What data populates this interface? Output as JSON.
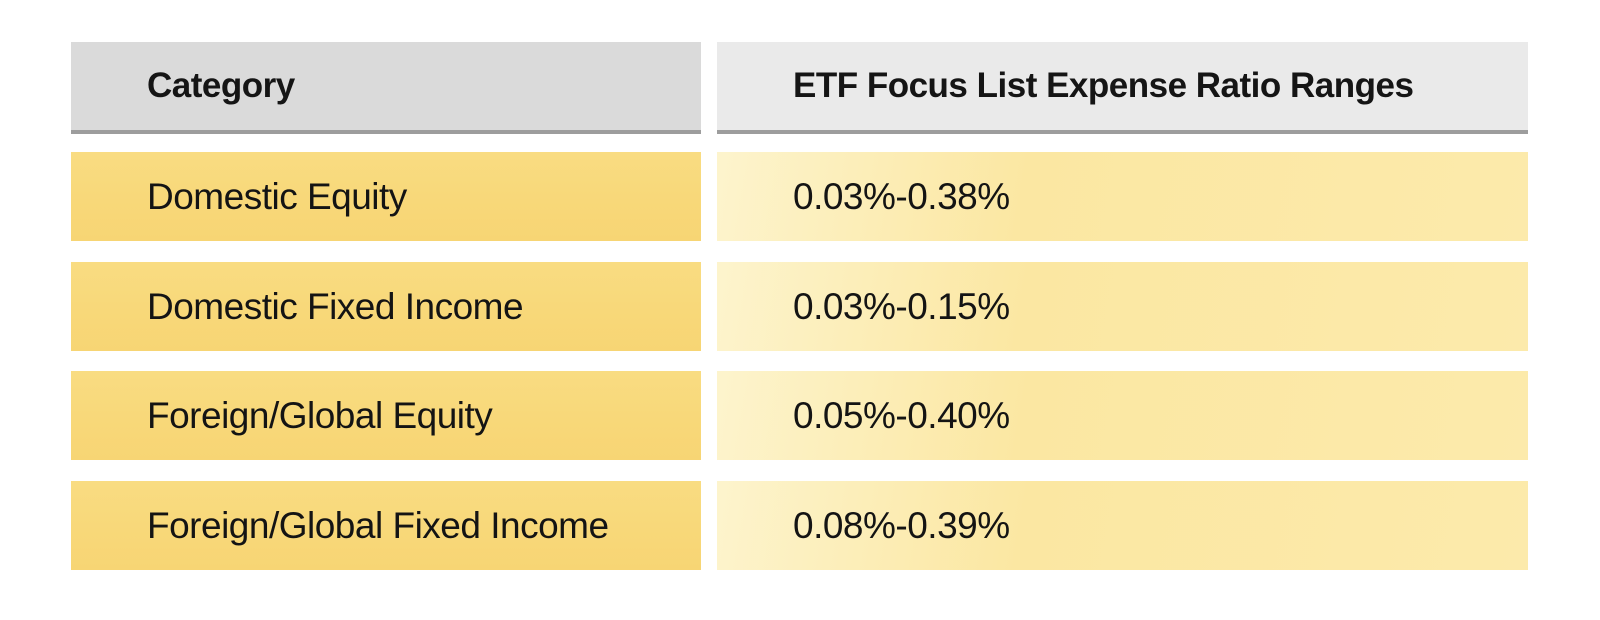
{
  "table": {
    "header": {
      "category_label": "Category",
      "expense_label": "ETF Focus List Expense Ratio Ranges"
    },
    "rows": [
      {
        "category": "Domestic Equity",
        "range": "0.03%-0.38%"
      },
      {
        "category": "Domestic Fixed Income",
        "range": "0.03%-0.15%"
      },
      {
        "category": "Foreign/Global Equity",
        "range": "0.05%-0.40%"
      },
      {
        "category": "Foreign/Global Fixed Income",
        "range": "0.08%-0.39%"
      }
    ]
  },
  "colors": {
    "header_col1_bg": "#dadada",
    "header_col2_bg": "#eaeaea",
    "header_border": "#9d9d9d",
    "row_col1_bg": "#f8d879",
    "row_col2_bg_light": "#fdf4cd",
    "row_col2_bg_deep": "#fbe7a2",
    "text": "#141414",
    "page_bg": "#ffffff"
  },
  "chart_data": {
    "type": "table",
    "title": "ETF Focus List Expense Ratio Ranges",
    "columns": [
      "Category",
      "ETF Focus List Expense Ratio Ranges"
    ],
    "rows": [
      [
        "Domestic Equity",
        "0.03%-0.38%"
      ],
      [
        "Domestic Fixed Income",
        "0.03%-0.15%"
      ],
      [
        "Foreign/Global Equity",
        "0.05%-0.40%"
      ],
      [
        "Foreign/Global Fixed Income",
        "0.08%-0.39%"
      ]
    ],
    "ranges_numeric_percent": [
      {
        "category": "Domestic Equity",
        "min": 0.03,
        "max": 0.38
      },
      {
        "category": "Domestic Fixed Income",
        "min": 0.03,
        "max": 0.15
      },
      {
        "category": "Foreign/Global Equity",
        "min": 0.05,
        "max": 0.4
      },
      {
        "category": "Foreign/Global Fixed Income",
        "min": 0.08,
        "max": 0.39
      }
    ]
  }
}
